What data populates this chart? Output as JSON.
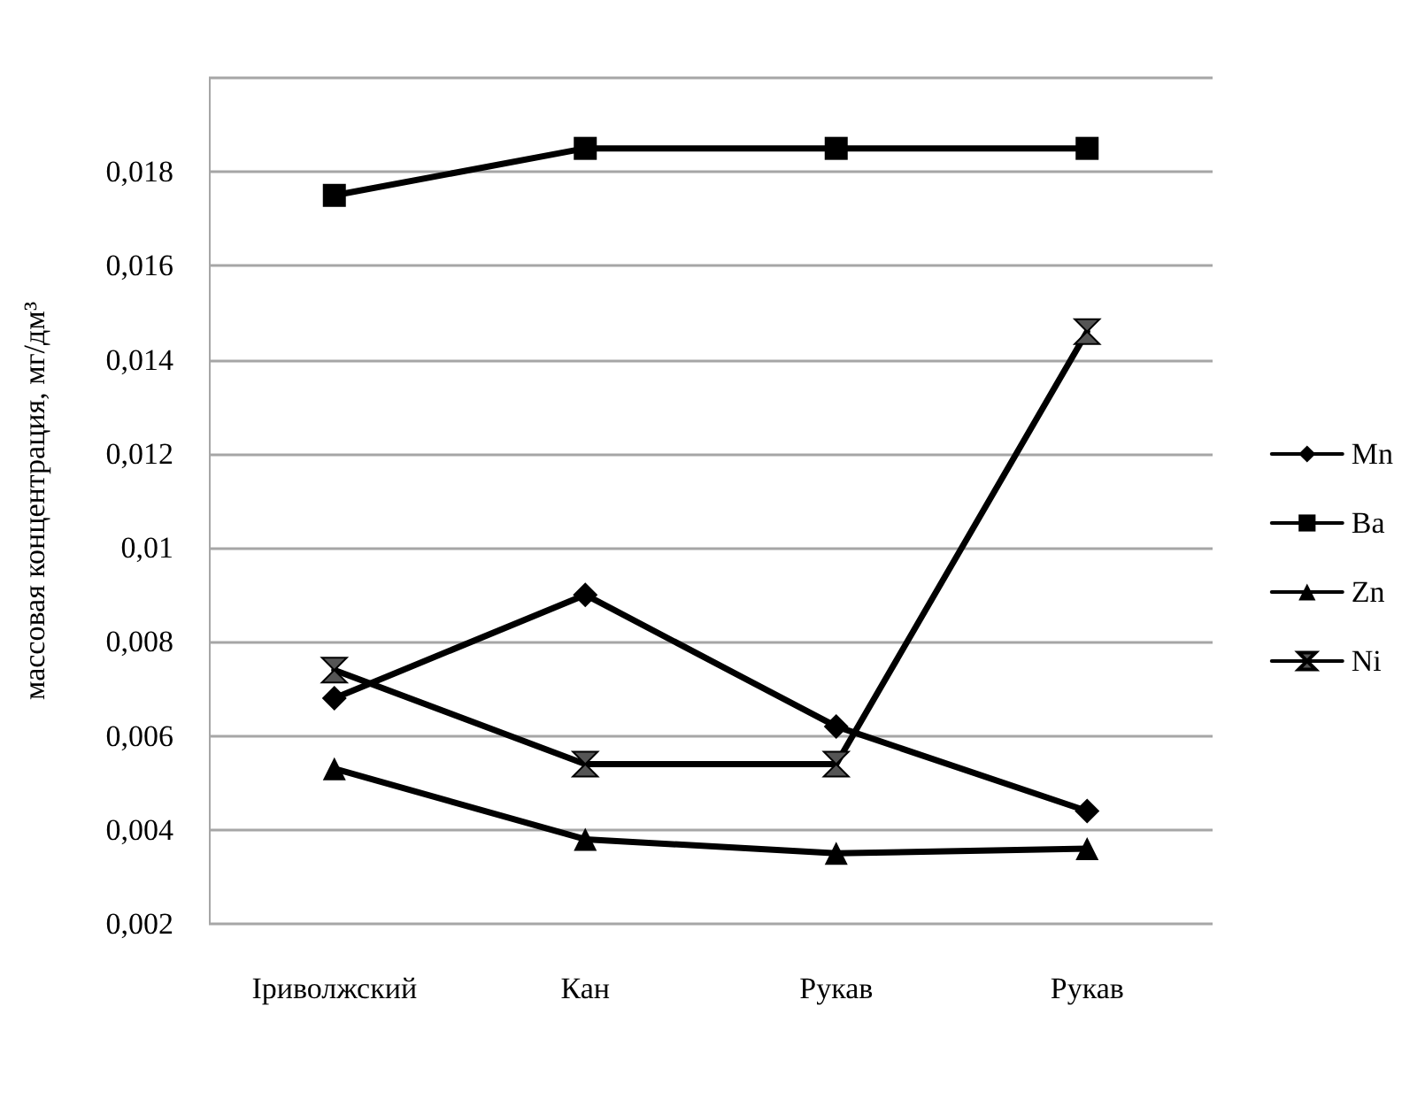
{
  "chart_data": {
    "type": "line",
    "ylabel": "массовая концентрация, мг/дм³",
    "categories": [
      "Іриволжский",
      "Кан",
      "Рукав",
      "Рукав"
    ],
    "series": [
      {
        "name": "Mn",
        "color": "#000000",
        "marker": "diamond",
        "values": [
          0.0068,
          0.009,
          0.0062,
          0.0044
        ]
      },
      {
        "name": "Ba",
        "color": "#000000",
        "marker": "square",
        "values": [
          0.0175,
          0.0185,
          0.0185,
          0.0185
        ]
      },
      {
        "name": "Zn",
        "color": "#000000",
        "marker": "triangle",
        "values": [
          0.0053,
          0.0038,
          0.0035,
          0.0036
        ]
      },
      {
        "name": "Ni",
        "color": "#000000",
        "marker": "cross",
        "values": [
          0.0074,
          0.0054,
          0.0054,
          0.0146
        ]
      }
    ],
    "ylim": [
      0.002,
      0.02
    ],
    "yticks": [
      {
        "value": 0.002,
        "label": "0,002"
      },
      {
        "value": 0.004,
        "label": "0,004"
      },
      {
        "value": 0.006,
        "label": "0,006"
      },
      {
        "value": 0.008,
        "label": "0,008"
      },
      {
        "value": 0.01,
        "label": "0,01"
      },
      {
        "value": 0.012,
        "label": "0,012"
      },
      {
        "value": 0.014,
        "label": "0,014"
      },
      {
        "value": 0.016,
        "label": "0,016"
      },
      {
        "value": 0.018,
        "label": "0,018"
      },
      {
        "value": 0.02,
        "label": null
      }
    ],
    "grid": "y",
    "legend": "right",
    "line_style": "solid"
  }
}
